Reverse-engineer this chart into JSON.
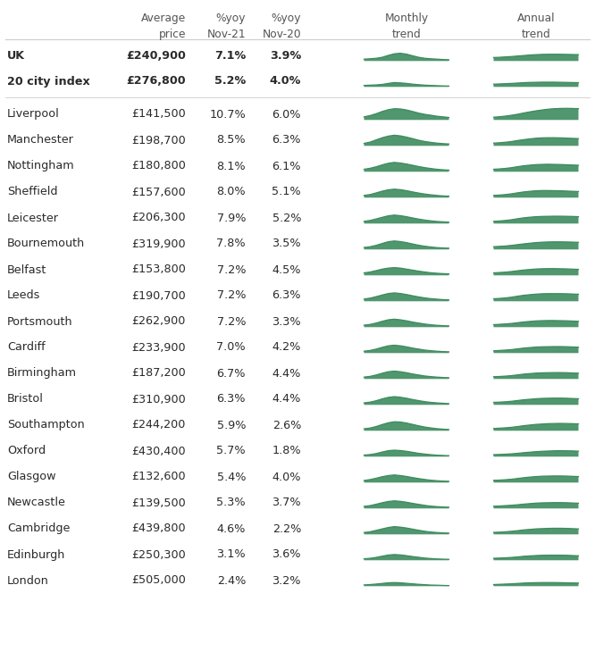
{
  "bg_color": "#ffffff",
  "green": "#3d8b5e",
  "rows": [
    {
      "city": "UK",
      "price": "£240,900",
      "yoy21": "7.1%",
      "yoy20": "3.9%",
      "bold": true,
      "separator_after": false
    },
    {
      "city": "20 city index",
      "price": "£276,800",
      "yoy21": "5.2%",
      "yoy20": "4.0%",
      "bold": true,
      "separator_after": true
    },
    {
      "city": "Liverpool",
      "price": "£141,500",
      "yoy21": "10.7%",
      "yoy20": "6.0%",
      "bold": false,
      "separator_after": false
    },
    {
      "city": "Manchester",
      "price": "£198,700",
      "yoy21": "8.5%",
      "yoy20": "6.3%",
      "bold": false,
      "separator_after": false
    },
    {
      "city": "Nottingham",
      "price": "£180,800",
      "yoy21": "8.1%",
      "yoy20": "6.1%",
      "bold": false,
      "separator_after": false
    },
    {
      "city": "Sheffield",
      "price": "£157,600",
      "yoy21": "8.0%",
      "yoy20": "5.1%",
      "bold": false,
      "separator_after": false
    },
    {
      "city": "Leicester",
      "price": "£206,300",
      "yoy21": "7.9%",
      "yoy20": "5.2%",
      "bold": false,
      "separator_after": false
    },
    {
      "city": "Bournemouth",
      "price": "£319,900",
      "yoy21": "7.8%",
      "yoy20": "3.5%",
      "bold": false,
      "separator_after": false
    },
    {
      "city": "Belfast",
      "price": "£153,800",
      "yoy21": "7.2%",
      "yoy20": "4.5%",
      "bold": false,
      "separator_after": false
    },
    {
      "city": "Leeds",
      "price": "£190,700",
      "yoy21": "7.2%",
      "yoy20": "6.3%",
      "bold": false,
      "separator_after": false
    },
    {
      "city": "Portsmouth",
      "price": "£262,900",
      "yoy21": "7.2%",
      "yoy20": "3.3%",
      "bold": false,
      "separator_after": false
    },
    {
      "city": "Cardiff",
      "price": "£233,900",
      "yoy21": "7.0%",
      "yoy20": "4.2%",
      "bold": false,
      "separator_after": false
    },
    {
      "city": "Birmingham",
      "price": "£187,200",
      "yoy21": "6.7%",
      "yoy20": "4.4%",
      "bold": false,
      "separator_after": false
    },
    {
      "city": "Bristol",
      "price": "£310,900",
      "yoy21": "6.3%",
      "yoy20": "4.4%",
      "bold": false,
      "separator_after": false
    },
    {
      "city": "Southampton",
      "price": "£244,200",
      "yoy21": "5.9%",
      "yoy20": "2.6%",
      "bold": false,
      "separator_after": false
    },
    {
      "city": "Oxford",
      "price": "£430,400",
      "yoy21": "5.7%",
      "yoy20": "1.8%",
      "bold": false,
      "separator_after": false
    },
    {
      "city": "Glasgow",
      "price": "£132,600",
      "yoy21": "5.4%",
      "yoy20": "4.0%",
      "bold": false,
      "separator_after": false
    },
    {
      "city": "Newcastle",
      "price": "£139,500",
      "yoy21": "5.3%",
      "yoy20": "3.7%",
      "bold": false,
      "separator_after": false
    },
    {
      "city": "Cambridge",
      "price": "£439,800",
      "yoy21": "4.6%",
      "yoy20": "2.2%",
      "bold": false,
      "separator_after": false
    },
    {
      "city": "Edinburgh",
      "price": "£250,300",
      "yoy21": "3.1%",
      "yoy20": "3.6%",
      "bold": false,
      "separator_after": false
    },
    {
      "city": "London",
      "price": "£505,000",
      "yoy21": "2.4%",
      "yoy20": "3.2%",
      "bold": false,
      "separator_after": false
    }
  ],
  "monthly_shapes": {
    "UK": [
      0.15,
      0.18,
      0.22,
      0.3,
      0.45,
      0.58,
      0.62,
      0.55,
      0.42,
      0.3,
      0.22,
      0.18,
      0.15,
      0.12,
      0.1
    ],
    "20 city index": [
      0.12,
      0.14,
      0.16,
      0.2,
      0.28,
      0.35,
      0.32,
      0.28,
      0.22,
      0.18,
      0.14,
      0.12,
      0.1,
      0.08,
      0.07
    ],
    "Liverpool": [
      0.25,
      0.35,
      0.5,
      0.68,
      0.82,
      0.9,
      0.88,
      0.8,
      0.68,
      0.55,
      0.45,
      0.38,
      0.3,
      0.25,
      0.2
    ],
    "Manchester": [
      0.2,
      0.3,
      0.48,
      0.65,
      0.78,
      0.85,
      0.8,
      0.7,
      0.58,
      0.45,
      0.35,
      0.28,
      0.22,
      0.18,
      0.15
    ],
    "Nottingham": [
      0.2,
      0.28,
      0.4,
      0.55,
      0.68,
      0.75,
      0.7,
      0.62,
      0.52,
      0.42,
      0.33,
      0.26,
      0.2,
      0.16,
      0.13
    ],
    "Sheffield": [
      0.18,
      0.25,
      0.38,
      0.52,
      0.63,
      0.68,
      0.64,
      0.56,
      0.46,
      0.37,
      0.29,
      0.23,
      0.18,
      0.14,
      0.12
    ],
    "Leicester": [
      0.18,
      0.25,
      0.37,
      0.5,
      0.62,
      0.68,
      0.63,
      0.55,
      0.45,
      0.36,
      0.28,
      0.22,
      0.17,
      0.14,
      0.11
    ],
    "Bournemouth": [
      0.16,
      0.22,
      0.33,
      0.48,
      0.62,
      0.68,
      0.63,
      0.55,
      0.44,
      0.34,
      0.26,
      0.2,
      0.15,
      0.12,
      0.1
    ],
    "Belfast": [
      0.2,
      0.27,
      0.38,
      0.5,
      0.58,
      0.62,
      0.58,
      0.5,
      0.42,
      0.34,
      0.27,
      0.21,
      0.17,
      0.14,
      0.12
    ],
    "Leeds": [
      0.18,
      0.25,
      0.37,
      0.5,
      0.62,
      0.67,
      0.62,
      0.54,
      0.44,
      0.35,
      0.27,
      0.21,
      0.17,
      0.13,
      0.11
    ],
    "Portsmouth": [
      0.16,
      0.22,
      0.33,
      0.47,
      0.59,
      0.64,
      0.59,
      0.51,
      0.41,
      0.33,
      0.25,
      0.19,
      0.15,
      0.12,
      0.1
    ],
    "Cardiff": [
      0.15,
      0.21,
      0.32,
      0.46,
      0.58,
      0.63,
      0.58,
      0.5,
      0.4,
      0.32,
      0.24,
      0.19,
      0.15,
      0.12,
      0.1
    ],
    "Birmingham": [
      0.15,
      0.21,
      0.32,
      0.46,
      0.58,
      0.63,
      0.58,
      0.5,
      0.4,
      0.32,
      0.24,
      0.19,
      0.15,
      0.12,
      0.1
    ],
    "Bristol": [
      0.16,
      0.22,
      0.33,
      0.48,
      0.6,
      0.66,
      0.61,
      0.53,
      0.43,
      0.34,
      0.26,
      0.2,
      0.16,
      0.13,
      0.1
    ],
    "Southampton": [
      0.16,
      0.22,
      0.34,
      0.5,
      0.64,
      0.72,
      0.7,
      0.62,
      0.51,
      0.4,
      0.3,
      0.23,
      0.17,
      0.13,
      0.1
    ],
    "Oxford": [
      0.13,
      0.17,
      0.25,
      0.37,
      0.48,
      0.52,
      0.49,
      0.43,
      0.35,
      0.27,
      0.21,
      0.16,
      0.12,
      0.1,
      0.08
    ],
    "Glasgow": [
      0.17,
      0.24,
      0.35,
      0.47,
      0.56,
      0.61,
      0.56,
      0.49,
      0.4,
      0.32,
      0.25,
      0.19,
      0.15,
      0.12,
      0.1
    ],
    "Newcastle": [
      0.17,
      0.23,
      0.34,
      0.46,
      0.56,
      0.61,
      0.57,
      0.5,
      0.41,
      0.33,
      0.25,
      0.19,
      0.15,
      0.12,
      0.1
    ],
    "Cambridge": [
      0.15,
      0.21,
      0.32,
      0.44,
      0.55,
      0.62,
      0.58,
      0.51,
      0.42,
      0.33,
      0.25,
      0.19,
      0.15,
      0.12,
      0.1
    ],
    "Edinburgh": [
      0.12,
      0.16,
      0.23,
      0.33,
      0.42,
      0.46,
      0.43,
      0.37,
      0.3,
      0.24,
      0.18,
      0.14,
      0.11,
      0.09,
      0.08
    ],
    "London": [
      0.1,
      0.13,
      0.17,
      0.22,
      0.27,
      0.29,
      0.27,
      0.23,
      0.19,
      0.15,
      0.12,
      0.09,
      0.08,
      0.06,
      0.05
    ]
  },
  "annual_shapes": {
    "UK": [
      0.28,
      0.3,
      0.33,
      0.36,
      0.4,
      0.44,
      0.48,
      0.51,
      0.53,
      0.54,
      0.54,
      0.54,
      0.53,
      0.52,
      0.51
    ],
    "20 city index": [
      0.22,
      0.24,
      0.26,
      0.28,
      0.31,
      0.34,
      0.36,
      0.37,
      0.38,
      0.38,
      0.38,
      0.37,
      0.36,
      0.35,
      0.34
    ],
    "Liverpool": [
      0.22,
      0.26,
      0.31,
      0.38,
      0.46,
      0.56,
      0.65,
      0.73,
      0.8,
      0.86,
      0.9,
      0.92,
      0.93,
      0.92,
      0.9
    ],
    "Manchester": [
      0.22,
      0.25,
      0.29,
      0.35,
      0.43,
      0.5,
      0.56,
      0.61,
      0.64,
      0.65,
      0.65,
      0.64,
      0.62,
      0.6,
      0.58
    ],
    "Nottingham": [
      0.2,
      0.23,
      0.27,
      0.33,
      0.41,
      0.48,
      0.53,
      0.57,
      0.59,
      0.6,
      0.59,
      0.58,
      0.56,
      0.54,
      0.52
    ],
    "Sheffield": [
      0.18,
      0.21,
      0.25,
      0.31,
      0.39,
      0.46,
      0.51,
      0.55,
      0.57,
      0.57,
      0.56,
      0.55,
      0.53,
      0.51,
      0.49
    ],
    "Leicester": [
      0.18,
      0.21,
      0.25,
      0.31,
      0.39,
      0.46,
      0.51,
      0.55,
      0.57,
      0.58,
      0.59,
      0.59,
      0.58,
      0.57,
      0.55
    ],
    "Bournemouth": [
      0.22,
      0.25,
      0.28,
      0.33,
      0.39,
      0.45,
      0.5,
      0.55,
      0.58,
      0.6,
      0.61,
      0.61,
      0.6,
      0.59,
      0.57
    ],
    "Belfast": [
      0.2,
      0.23,
      0.26,
      0.31,
      0.37,
      0.43,
      0.47,
      0.51,
      0.53,
      0.54,
      0.54,
      0.53,
      0.52,
      0.5,
      0.48
    ],
    "Leeds": [
      0.2,
      0.23,
      0.27,
      0.33,
      0.41,
      0.48,
      0.53,
      0.57,
      0.6,
      0.61,
      0.61,
      0.61,
      0.6,
      0.58,
      0.56
    ],
    "Portsmouth": [
      0.2,
      0.23,
      0.26,
      0.3,
      0.36,
      0.42,
      0.46,
      0.5,
      0.52,
      0.53,
      0.53,
      0.52,
      0.51,
      0.49,
      0.47
    ],
    "Cardiff": [
      0.18,
      0.21,
      0.24,
      0.28,
      0.34,
      0.4,
      0.44,
      0.48,
      0.5,
      0.51,
      0.52,
      0.52,
      0.51,
      0.49,
      0.47
    ],
    "Birmingham": [
      0.18,
      0.2,
      0.23,
      0.27,
      0.33,
      0.39,
      0.43,
      0.47,
      0.49,
      0.5,
      0.51,
      0.51,
      0.5,
      0.48,
      0.46
    ],
    "Bristol": [
      0.2,
      0.22,
      0.25,
      0.29,
      0.35,
      0.41,
      0.45,
      0.49,
      0.52,
      0.53,
      0.54,
      0.54,
      0.53,
      0.51,
      0.49
    ],
    "Southampton": [
      0.18,
      0.21,
      0.24,
      0.28,
      0.34,
      0.41,
      0.46,
      0.51,
      0.54,
      0.57,
      0.58,
      0.59,
      0.58,
      0.57,
      0.55
    ],
    "Oxford": [
      0.16,
      0.18,
      0.2,
      0.23,
      0.27,
      0.32,
      0.36,
      0.4,
      0.43,
      0.45,
      0.47,
      0.48,
      0.47,
      0.46,
      0.44
    ],
    "Glasgow": [
      0.18,
      0.2,
      0.23,
      0.27,
      0.33,
      0.39,
      0.44,
      0.48,
      0.51,
      0.52,
      0.53,
      0.53,
      0.52,
      0.5,
      0.48
    ],
    "Newcastle": [
      0.18,
      0.2,
      0.23,
      0.26,
      0.3,
      0.35,
      0.39,
      0.43,
      0.45,
      0.46,
      0.47,
      0.47,
      0.46,
      0.44,
      0.42
    ],
    "Cambridge": [
      0.16,
      0.18,
      0.21,
      0.25,
      0.3,
      0.36,
      0.4,
      0.44,
      0.46,
      0.48,
      0.49,
      0.49,
      0.48,
      0.46,
      0.44
    ],
    "Edinburgh": [
      0.16,
      0.18,
      0.2,
      0.23,
      0.27,
      0.32,
      0.35,
      0.38,
      0.4,
      0.41,
      0.41,
      0.41,
      0.4,
      0.38,
      0.36
    ],
    "London": [
      0.13,
      0.15,
      0.17,
      0.19,
      0.22,
      0.25,
      0.27,
      0.28,
      0.29,
      0.29,
      0.29,
      0.28,
      0.27,
      0.26,
      0.25
    ]
  }
}
